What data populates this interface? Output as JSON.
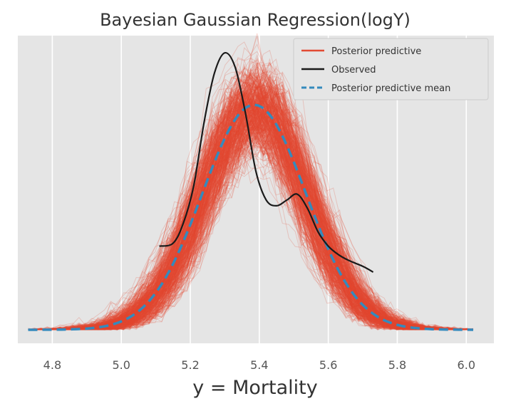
{
  "chart_data": {
    "type": "line",
    "title": "Bayesian Gaussian Regression(logY)",
    "xlabel": "y = Mortality",
    "ylabel": "",
    "xlim": [
      4.7,
      6.08
    ],
    "ylim": [
      0,
      1
    ],
    "xticks": [
      "4.8",
      "5.0",
      "5.2",
      "5.4",
      "5.6",
      "5.8",
      "6.0"
    ],
    "grid": true,
    "legend_position": "top-right",
    "colors": {
      "posterior_predictive": "#E24A33",
      "observed": "#1a1a1a",
      "posterior_mean": "#348ABD",
      "background": "#E5E5E5",
      "grid": "#ffffff"
    },
    "series": [
      {
        "name": "Posterior predictive",
        "style": "many semi-transparent sample density curves",
        "samples": 500,
        "mean": 5.385,
        "sd": 0.15,
        "x_range": [
          4.73,
          6.02
        ]
      },
      {
        "name": "Observed",
        "style": "solid",
        "x": [
          5.11,
          5.15,
          5.18,
          5.21,
          5.24,
          5.27,
          5.3,
          5.33,
          5.36,
          5.39,
          5.42,
          5.45,
          5.48,
          5.51,
          5.54,
          5.57,
          5.6,
          5.63,
          5.66,
          5.7,
          5.73
        ],
        "y": [
          0.29,
          0.3,
          0.37,
          0.5,
          0.72,
          0.89,
          0.96,
          0.91,
          0.75,
          0.55,
          0.45,
          0.43,
          0.45,
          0.47,
          0.42,
          0.34,
          0.29,
          0.26,
          0.24,
          0.22,
          0.2
        ]
      },
      {
        "name": "Posterior predictive mean",
        "style": "dashed",
        "mean": 5.385,
        "sd": 0.15,
        "peak": 0.78,
        "x_range": [
          4.73,
          6.02
        ]
      }
    ]
  }
}
